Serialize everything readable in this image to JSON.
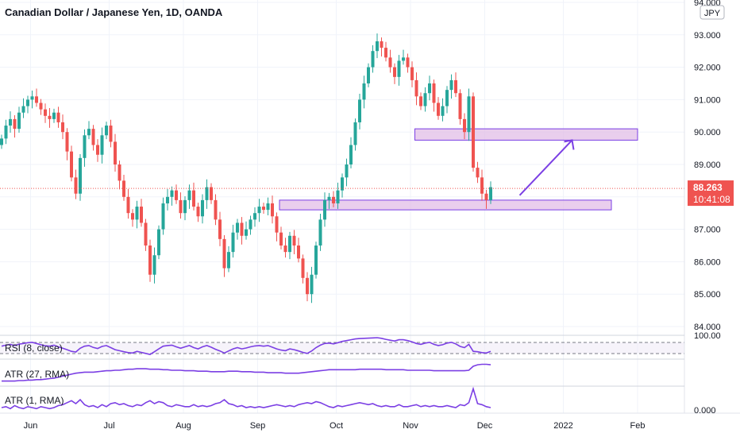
{
  "title": "Canadian Dollar / Japanese Yen, 1D, OANDA",
  "currency": "JPY",
  "colors": {
    "up": "#26a69a",
    "down": "#ef5350",
    "indicator": "#7b3fe4",
    "zone_fill": "#e1bee7",
    "zone_stroke": "#7b3fe4",
    "price_tag": "#ef5350",
    "grid": "#f0f3fa",
    "axis_text": "#131722"
  },
  "price_axis": {
    "min": 84.0,
    "max": 94.0,
    "ticks": [
      "94.000",
      "93.000",
      "92.000",
      "91.000",
      "90.000",
      "89.000",
      "88.000",
      "87.000",
      "86.000",
      "85.000",
      "84.000"
    ]
  },
  "time_axis": {
    "labels": [
      "Jun",
      "Jul",
      "Aug",
      "Sep",
      "Oct",
      "Nov",
      "Dec",
      "2022",
      "Feb"
    ]
  },
  "current_price": {
    "value": 88.263,
    "label": "88.263",
    "countdown": "10:41:08"
  },
  "zones": [
    {
      "from_bar": 64,
      "to_bar": 140,
      "low": 87.6,
      "high": 87.9
    },
    {
      "from_bar": 95,
      "to_bar": 146,
      "low": 89.75,
      "high": 90.1
    }
  ],
  "arrow": {
    "from_bar": 119,
    "from_price": 88.05,
    "to_bar": 131,
    "to_price": 89.75
  },
  "indicators": [
    {
      "name": "RSI (8, close)",
      "axis_label": "100.00",
      "dashed_lines": true
    },
    {
      "name": "ATR (27, RMA)"
    },
    {
      "name": "ATR (1, RMA)",
      "axis_label": "0.000"
    }
  ],
  "chart_data": {
    "type": "candlestick",
    "title": "Canadian Dollar / Japanese Yen, 1D, OANDA",
    "ylim": [
      84.0,
      94.0
    ],
    "x_labels": [
      "Jun",
      "Jul",
      "Aug",
      "Sep",
      "Oct",
      "Nov",
      "Dec",
      "2022",
      "Feb"
    ],
    "close": [
      89.8,
      90.2,
      90.4,
      90.1,
      90.6,
      90.8,
      91.0,
      91.1,
      90.9,
      90.7,
      90.5,
      90.4,
      90.6,
      90.3,
      90.0,
      89.4,
      88.6,
      88.1,
      89.2,
      89.9,
      90.1,
      89.6,
      89.3,
      89.9,
      90.2,
      89.7,
      89.0,
      88.5,
      88.0,
      87.5,
      87.3,
      87.7,
      87.2,
      86.5,
      85.6,
      86.2,
      87.0,
      87.8,
      88.0,
      88.2,
      87.9,
      87.5,
      87.9,
      88.2,
      87.7,
      87.4,
      87.9,
      88.3,
      87.9,
      87.3,
      86.7,
      85.8,
      86.3,
      86.9,
      87.2,
      86.8,
      87.0,
      87.3,
      87.5,
      87.7,
      87.6,
      87.8,
      87.4,
      86.9,
      86.5,
      86.3,
      86.8,
      86.5,
      86.1,
      85.5,
      85.0,
      85.6,
      86.5,
      87.3,
      87.9,
      88.0,
      87.8,
      88.2,
      88.6,
      89.0,
      89.6,
      90.3,
      91.0,
      91.5,
      92.0,
      92.5,
      92.8,
      92.6,
      92.3,
      92.0,
      91.7,
      92.2,
      92.3,
      92.0,
      91.6,
      91.1,
      90.8,
      91.2,
      91.5,
      90.9,
      90.5,
      90.8,
      91.3,
      91.6,
      91.2,
      90.4,
      90.0,
      91.1,
      88.9,
      88.6,
      88.1,
      87.9,
      88.3
    ],
    "rsi": [
      55,
      60,
      64,
      58,
      65,
      68,
      72,
      74,
      68,
      62,
      57,
      55,
      60,
      52,
      45,
      38,
      30,
      27,
      45,
      55,
      58,
      49,
      44,
      54,
      58,
      48,
      38,
      33,
      28,
      24,
      22,
      30,
      25,
      20,
      15,
      28,
      42,
      55,
      58,
      60,
      52,
      45,
      52,
      58,
      48,
      42,
      52,
      58,
      50,
      40,
      32,
      22,
      32,
      42,
      48,
      42,
      46,
      52,
      56,
      58,
      55,
      58,
      50,
      42,
      36,
      33,
      42,
      38,
      32,
      25,
      20,
      32,
      48,
      60,
      68,
      70,
      66,
      72,
      78,
      82,
      86,
      90,
      92,
      93,
      94,
      95,
      96,
      93,
      88,
      84,
      80,
      86,
      86,
      82,
      76,
      68,
      64,
      70,
      74,
      64,
      58,
      62,
      70,
      74,
      66,
      54,
      48,
      64,
      30,
      28,
      24,
      22,
      30
    ],
    "atr27": [
      0.42,
      0.42,
      0.42,
      0.42,
      0.43,
      0.43,
      0.44,
      0.44,
      0.45,
      0.45,
      0.46,
      0.47,
      0.48,
      0.5,
      0.52,
      0.54,
      0.56,
      0.58,
      0.59,
      0.6,
      0.6,
      0.6,
      0.61,
      0.62,
      0.63,
      0.63,
      0.64,
      0.64,
      0.65,
      0.66,
      0.66,
      0.67,
      0.67,
      0.67,
      0.66,
      0.66,
      0.66,
      0.65,
      0.65,
      0.64,
      0.64,
      0.64,
      0.63,
      0.63,
      0.63,
      0.62,
      0.62,
      0.62,
      0.61,
      0.61,
      0.61,
      0.61,
      0.62,
      0.62,
      0.62,
      0.61,
      0.61,
      0.61,
      0.6,
      0.6,
      0.6,
      0.59,
      0.59,
      0.59,
      0.59,
      0.58,
      0.58,
      0.58,
      0.58,
      0.59,
      0.6,
      0.61,
      0.62,
      0.63,
      0.64,
      0.65,
      0.65,
      0.65,
      0.65,
      0.65,
      0.65,
      0.65,
      0.66,
      0.66,
      0.66,
      0.66,
      0.66,
      0.66,
      0.65,
      0.65,
      0.65,
      0.65,
      0.65,
      0.64,
      0.64,
      0.64,
      0.64,
      0.64,
      0.64,
      0.63,
      0.63,
      0.63,
      0.63,
      0.63,
      0.63,
      0.63,
      0.63,
      0.64,
      0.72,
      0.75,
      0.76,
      0.76,
      0.75
    ],
    "atr1": [
      0.4,
      0.5,
      0.3,
      0.6,
      0.4,
      0.3,
      0.5,
      0.4,
      0.3,
      0.5,
      0.4,
      0.3,
      0.4,
      0.6,
      0.7,
      0.9,
      1.1,
      0.8,
      1.2,
      0.7,
      0.5,
      0.6,
      0.4,
      0.7,
      0.5,
      0.8,
      0.9,
      0.7,
      0.8,
      0.6,
      0.5,
      0.7,
      0.6,
      0.9,
      1.1,
      0.8,
      1.0,
      0.9,
      0.6,
      0.5,
      0.7,
      0.6,
      0.5,
      0.5,
      0.7,
      0.5,
      0.6,
      0.5,
      0.6,
      0.8,
      0.9,
      1.2,
      0.8,
      0.7,
      0.5,
      0.6,
      0.4,
      0.5,
      0.4,
      0.5,
      0.4,
      0.5,
      0.6,
      0.7,
      0.6,
      0.5,
      0.6,
      0.5,
      0.7,
      0.8,
      0.9,
      0.8,
      1.0,
      0.9,
      0.7,
      0.5,
      0.4,
      0.6,
      0.5,
      0.6,
      0.7,
      0.8,
      0.9,
      0.8,
      0.7,
      0.8,
      0.6,
      0.5,
      0.6,
      0.5,
      0.5,
      0.7,
      0.5,
      0.5,
      0.6,
      0.7,
      0.5,
      0.6,
      0.5,
      0.6,
      0.5,
      0.5,
      0.6,
      0.5,
      0.4,
      0.7,
      0.6,
      0.9,
      2.3,
      0.8,
      0.7,
      0.5,
      0.4
    ]
  }
}
